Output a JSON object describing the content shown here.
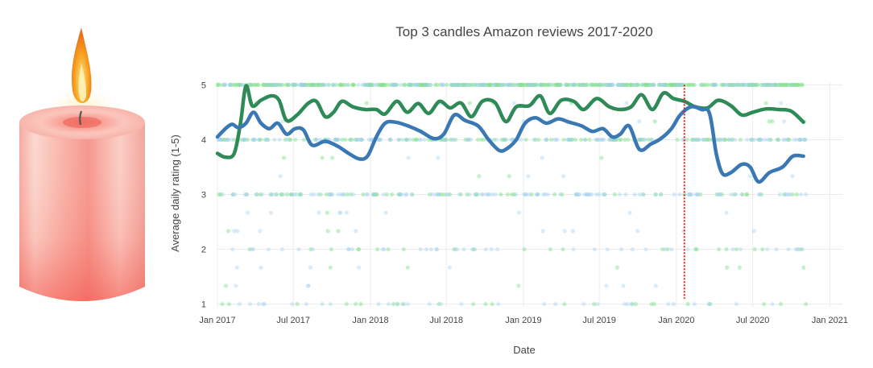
{
  "chart_data": {
    "type": "scatter",
    "title": "Top 3  candles Amazon reviews 2017-2020",
    "xlabel": "Date",
    "ylabel": "Average daily rating (1-5)",
    "x_range": [
      "2017-01-01",
      "2021-01-31"
    ],
    "ylim": [
      0.95,
      5.05
    ],
    "grid": true,
    "x_ticks": [
      {
        "date": "2017-01-01",
        "label": "Jan 2017"
      },
      {
        "date": "2017-07-01",
        "label": "Jul 2017"
      },
      {
        "date": "2018-01-01",
        "label": "Jan 2018"
      },
      {
        "date": "2018-07-01",
        "label": "Jul 2018"
      },
      {
        "date": "2019-01-01",
        "label": "Jan 2019"
      },
      {
        "date": "2019-07-01",
        "label": "Jul 2019"
      },
      {
        "date": "2020-01-01",
        "label": "Jan 2020"
      },
      {
        "date": "2020-07-01",
        "label": "Jul 2020"
      },
      {
        "date": "2021-01-01",
        "label": "Jan 2021"
      }
    ],
    "y_ticks": [
      {
        "value": 1,
        "label": "1"
      },
      {
        "value": 2,
        "label": "2"
      },
      {
        "value": 3,
        "label": "3"
      },
      {
        "value": 4,
        "label": "4"
      },
      {
        "value": 5,
        "label": "5"
      }
    ],
    "reference_line": {
      "date": "2020-01-20",
      "color": "#dd2222",
      "style": "dotted"
    },
    "series": [
      {
        "name": "green-smoothed",
        "kind": "line",
        "color": "#2e8b57",
        "points": [
          [
            "2017-01-01",
            3.75
          ],
          [
            "2017-01-20",
            3.68
          ],
          [
            "2017-02-10",
            3.75
          ],
          [
            "2017-02-25",
            4.3
          ],
          [
            "2017-03-10",
            4.98
          ],
          [
            "2017-03-25",
            4.62
          ],
          [
            "2017-04-15",
            4.72
          ],
          [
            "2017-05-10",
            4.8
          ],
          [
            "2017-05-28",
            4.72
          ],
          [
            "2017-06-15",
            4.35
          ],
          [
            "2017-07-10",
            4.45
          ],
          [
            "2017-08-05",
            4.66
          ],
          [
            "2017-08-25",
            4.7
          ],
          [
            "2017-09-15",
            4.42
          ],
          [
            "2017-10-05",
            4.5
          ],
          [
            "2017-10-25",
            4.7
          ],
          [
            "2017-11-20",
            4.6
          ],
          [
            "2017-12-20",
            4.55
          ],
          [
            "2018-01-15",
            4.55
          ],
          [
            "2018-02-05",
            4.47
          ],
          [
            "2018-03-05",
            4.7
          ],
          [
            "2018-03-30",
            4.5
          ],
          [
            "2018-04-25",
            4.66
          ],
          [
            "2018-05-20",
            4.48
          ],
          [
            "2018-06-15",
            4.7
          ],
          [
            "2018-07-10",
            4.58
          ],
          [
            "2018-08-05",
            4.67
          ],
          [
            "2018-08-30",
            4.42
          ],
          [
            "2018-09-25",
            4.7
          ],
          [
            "2018-10-25",
            4.68
          ],
          [
            "2018-11-20",
            4.33
          ],
          [
            "2018-12-15",
            4.6
          ],
          [
            "2019-01-15",
            4.62
          ],
          [
            "2019-02-10",
            4.8
          ],
          [
            "2019-03-05",
            4.48
          ],
          [
            "2019-04-01",
            4.72
          ],
          [
            "2019-05-01",
            4.7
          ],
          [
            "2019-05-25",
            4.55
          ],
          [
            "2019-06-25",
            4.75
          ],
          [
            "2019-07-25",
            4.6
          ],
          [
            "2019-08-20",
            4.55
          ],
          [
            "2019-09-15",
            4.6
          ],
          [
            "2019-10-10",
            4.82
          ],
          [
            "2019-11-05",
            4.55
          ],
          [
            "2019-12-01",
            4.85
          ],
          [
            "2019-12-25",
            4.75
          ],
          [
            "2020-01-20",
            4.7
          ],
          [
            "2020-02-15",
            4.6
          ],
          [
            "2020-03-15",
            4.58
          ],
          [
            "2020-04-10",
            4.72
          ],
          [
            "2020-05-10",
            4.62
          ],
          [
            "2020-06-05",
            4.45
          ],
          [
            "2020-07-01",
            4.5
          ],
          [
            "2020-08-01",
            4.56
          ],
          [
            "2020-09-01",
            4.55
          ],
          [
            "2020-10-01",
            4.52
          ],
          [
            "2020-10-30",
            4.32
          ]
        ]
      },
      {
        "name": "blue-smoothed",
        "kind": "line",
        "color": "#3a78b4",
        "points": [
          [
            "2017-01-01",
            4.05
          ],
          [
            "2017-01-20",
            4.2
          ],
          [
            "2017-02-05",
            4.28
          ],
          [
            "2017-02-20",
            4.22
          ],
          [
            "2017-03-10",
            4.3
          ],
          [
            "2017-03-28",
            4.5
          ],
          [
            "2017-04-15",
            4.3
          ],
          [
            "2017-05-05",
            4.2
          ],
          [
            "2017-05-25",
            4.3
          ],
          [
            "2017-06-15",
            4.1
          ],
          [
            "2017-07-05",
            4.2
          ],
          [
            "2017-07-25",
            4.18
          ],
          [
            "2017-08-15",
            3.9
          ],
          [
            "2017-09-15",
            3.97
          ],
          [
            "2017-10-15",
            3.88
          ],
          [
            "2017-11-10",
            3.75
          ],
          [
            "2017-12-05",
            3.65
          ],
          [
            "2017-12-25",
            3.7
          ],
          [
            "2018-01-15",
            4.05
          ],
          [
            "2018-02-05",
            4.3
          ],
          [
            "2018-03-01",
            4.32
          ],
          [
            "2018-04-01",
            4.25
          ],
          [
            "2018-05-01",
            4.15
          ],
          [
            "2018-06-01",
            4.02
          ],
          [
            "2018-06-25",
            4.1
          ],
          [
            "2018-07-20",
            4.45
          ],
          [
            "2018-08-15",
            4.35
          ],
          [
            "2018-09-15",
            4.25
          ],
          [
            "2018-10-10",
            4.0
          ],
          [
            "2018-11-05",
            3.8
          ],
          [
            "2018-11-25",
            3.85
          ],
          [
            "2018-12-15",
            4.0
          ],
          [
            "2019-01-05",
            4.3
          ],
          [
            "2019-01-30",
            4.4
          ],
          [
            "2019-02-25",
            4.3
          ],
          [
            "2019-03-25",
            4.38
          ],
          [
            "2019-04-20",
            4.32
          ],
          [
            "2019-05-20",
            4.25
          ],
          [
            "2019-06-15",
            4.15
          ],
          [
            "2019-07-10",
            4.2
          ],
          [
            "2019-08-01",
            4.05
          ],
          [
            "2019-08-20",
            4.1
          ],
          [
            "2019-09-10",
            4.25
          ],
          [
            "2019-10-05",
            3.82
          ],
          [
            "2019-11-01",
            3.92
          ],
          [
            "2019-11-25",
            4.02
          ],
          [
            "2019-12-20",
            4.2
          ],
          [
            "2020-01-10",
            4.45
          ],
          [
            "2020-02-05",
            4.6
          ],
          [
            "2020-03-01",
            4.55
          ],
          [
            "2020-03-20",
            4.48
          ],
          [
            "2020-04-05",
            3.75
          ],
          [
            "2020-04-20",
            3.38
          ],
          [
            "2020-05-10",
            3.4
          ],
          [
            "2020-06-05",
            3.55
          ],
          [
            "2020-06-25",
            3.5
          ],
          [
            "2020-07-15",
            3.23
          ],
          [
            "2020-08-10",
            3.4
          ],
          [
            "2020-09-10",
            3.5
          ],
          [
            "2020-10-05",
            3.7
          ],
          [
            "2020-10-30",
            3.7
          ]
        ]
      }
    ],
    "scatter_series": [
      {
        "name": "green-daily",
        "color": "#7ddf84",
        "range": [
          "2017-01-01",
          "2020-11-05"
        ],
        "dense_levels": [
          5.0,
          4.0,
          3.0,
          2.0,
          1.0
        ],
        "level_weights": [
          0.55,
          0.15,
          0.08,
          0.03,
          0.03
        ]
      },
      {
        "name": "blue-daily",
        "color": "#9fd0f2",
        "range": [
          "2017-01-01",
          "2020-11-05"
        ],
        "dense_levels": [
          5.0,
          4.0,
          3.0,
          2.0,
          1.0
        ],
        "level_weights": [
          0.2,
          0.2,
          0.15,
          0.05,
          0.04
        ]
      }
    ]
  },
  "image": {
    "subject": "candle-icon"
  }
}
